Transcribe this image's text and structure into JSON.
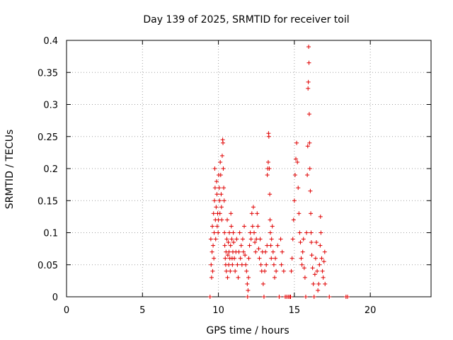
{
  "chart_data": {
    "type": "scatter",
    "title": "Day 139 of 2025, SRMTID for receiver toil",
    "xlabel": "GPS time / hours",
    "ylabel": "SRMTID / TECUs",
    "xlim": [
      0,
      24
    ],
    "ylim": [
      0,
      0.4
    ],
    "xticks": [
      0,
      5,
      10,
      15,
      20
    ],
    "xtick_labels": [
      "0",
      "5",
      "10",
      "15",
      "20"
    ],
    "yticks": [
      0,
      0.05,
      0.1,
      0.15,
      0.2,
      0.25,
      0.3,
      0.35,
      0.4
    ],
    "ytick_labels": [
      "0",
      "0.05",
      "0.1",
      "0.15",
      "0.2",
      "0.25",
      "0.3",
      "0.35",
      "0.4"
    ],
    "grid": true,
    "marker": "+",
    "color": "#e00000",
    "series": [
      {
        "name": "SRMTID",
        "points": [
          [
            9.45,
            0.0
          ],
          [
            9.5,
            0.09
          ],
          [
            9.52,
            0.05
          ],
          [
            9.55,
            0.03
          ],
          [
            9.58,
            0.07
          ],
          [
            9.6,
            0.11
          ],
          [
            9.62,
            0.04
          ],
          [
            9.65,
            0.08
          ],
          [
            9.68,
            0.13
          ],
          [
            9.7,
            0.06
          ],
          [
            9.72,
            0.1
          ],
          [
            9.74,
            0.15
          ],
          [
            9.76,
            0.2
          ],
          [
            9.78,
            0.17
          ],
          [
            9.8,
            0.12
          ],
          [
            9.82,
            0.09
          ],
          [
            9.85,
            0.14
          ],
          [
            9.88,
            0.18
          ],
          [
            9.9,
            0.16
          ],
          [
            9.92,
            0.11
          ],
          [
            9.95,
            0.13
          ],
          [
            9.98,
            0.1
          ],
          [
            10.0,
            0.12
          ],
          [
            10.02,
            0.19
          ],
          [
            10.05,
            0.17
          ],
          [
            10.08,
            0.15
          ],
          [
            10.1,
            0.13
          ],
          [
            10.12,
            0.21
          ],
          [
            10.15,
            0.19
          ],
          [
            10.18,
            0.16
          ],
          [
            10.2,
            0.14
          ],
          [
            10.22,
            0.12
          ],
          [
            10.25,
            0.22
          ],
          [
            10.28,
            0.245
          ],
          [
            10.3,
            0.24
          ],
          [
            10.32,
            0.2
          ],
          [
            10.35,
            0.17
          ],
          [
            10.38,
            0.15
          ],
          [
            10.4,
            0.1
          ],
          [
            10.42,
            0.08
          ],
          [
            10.45,
            0.06
          ],
          [
            10.48,
            0.05
          ],
          [
            10.5,
            0.07
          ],
          [
            10.52,
            0.04
          ],
          [
            10.55,
            0.09
          ],
          [
            10.58,
            0.12
          ],
          [
            10.6,
            0.03
          ],
          [
            10.62,
            0.065
          ],
          [
            10.65,
            0.085
          ],
          [
            10.68,
            0.05
          ],
          [
            10.7,
            0.07
          ],
          [
            10.72,
            0.1
          ],
          [
            10.75,
            0.06
          ],
          [
            10.78,
            0.04
          ],
          [
            10.8,
            0.08
          ],
          [
            10.82,
            0.13
          ],
          [
            10.85,
            0.11
          ],
          [
            10.88,
            0.09
          ],
          [
            10.9,
            0.06
          ],
          [
            10.92,
            0.05
          ],
          [
            10.95,
            0.07
          ],
          [
            10.98,
            0.1
          ],
          [
            11.0,
            0.085
          ],
          [
            11.05,
            0.06
          ],
          [
            11.1,
            0.04
          ],
          [
            11.15,
            0.07
          ],
          [
            11.2,
            0.09
          ],
          [
            11.25,
            0.05
          ],
          [
            11.3,
            0.03
          ],
          [
            11.35,
            0.07
          ],
          [
            11.4,
            0.1
          ],
          [
            11.45,
            0.06
          ],
          [
            11.5,
            0.08
          ],
          [
            11.55,
            0.05
          ],
          [
            11.6,
            0.09
          ],
          [
            11.65,
            0.07
          ],
          [
            11.7,
            0.11
          ],
          [
            11.75,
            0.065
          ],
          [
            11.8,
            0.05
          ],
          [
            11.85,
            0.04
          ],
          [
            11.9,
            0.02
          ],
          [
            11.92,
            0.0
          ],
          [
            11.95,
            0.01
          ],
          [
            11.98,
            0.03
          ],
          [
            12.0,
            0.06
          ],
          [
            12.05,
            0.08
          ],
          [
            12.1,
            0.1
          ],
          [
            12.15,
            0.09
          ],
          [
            12.2,
            0.13
          ],
          [
            12.25,
            0.11
          ],
          [
            12.3,
            0.14
          ],
          [
            12.35,
            0.1
          ],
          [
            12.4,
            0.085
          ],
          [
            12.45,
            0.07
          ],
          [
            12.5,
            0.09
          ],
          [
            12.55,
            0.13
          ],
          [
            12.6,
            0.11
          ],
          [
            12.65,
            0.075
          ],
          [
            12.7,
            0.06
          ],
          [
            12.75,
            0.09
          ],
          [
            12.8,
            0.05
          ],
          [
            12.85,
            0.04
          ],
          [
            12.9,
            0.07
          ],
          [
            12.95,
            0.02
          ],
          [
            13.0,
            0.0
          ],
          [
            13.05,
            0.04
          ],
          [
            13.1,
            0.07
          ],
          [
            13.15,
            0.05
          ],
          [
            13.2,
            0.08
          ],
          [
            13.22,
            0.19
          ],
          [
            13.25,
            0.2
          ],
          [
            13.28,
            0.21
          ],
          [
            13.3,
            0.255
          ],
          [
            13.32,
            0.25
          ],
          [
            13.35,
            0.2
          ],
          [
            13.38,
            0.16
          ],
          [
            13.4,
            0.12
          ],
          [
            13.42,
            0.1
          ],
          [
            13.45,
            0.08
          ],
          [
            13.48,
            0.06
          ],
          [
            13.5,
            0.09
          ],
          [
            13.55,
            0.11
          ],
          [
            13.6,
            0.07
          ],
          [
            13.65,
            0.05
          ],
          [
            13.7,
            0.03
          ],
          [
            13.75,
            0.06
          ],
          [
            13.8,
            0.04
          ],
          [
            13.9,
            0.08
          ],
          [
            14.0,
            0.0
          ],
          [
            14.1,
            0.09
          ],
          [
            14.15,
            0.05
          ],
          [
            14.2,
            0.07
          ],
          [
            14.3,
            0.04
          ],
          [
            14.4,
            0.0
          ],
          [
            14.5,
            0.0
          ],
          [
            14.6,
            0.0
          ],
          [
            14.7,
            0.0
          ],
          [
            14.75,
            0.0
          ],
          [
            14.8,
            0.04
          ],
          [
            14.85,
            0.06
          ],
          [
            14.9,
            0.09
          ],
          [
            14.95,
            0.12
          ],
          [
            15.0,
            0.15
          ],
          [
            15.05,
            0.19
          ],
          [
            15.1,
            0.215
          ],
          [
            15.15,
            0.24
          ],
          [
            15.2,
            0.21
          ],
          [
            15.25,
            0.17
          ],
          [
            15.3,
            0.13
          ],
          [
            15.35,
            0.1
          ],
          [
            15.4,
            0.085
          ],
          [
            15.45,
            0.06
          ],
          [
            15.5,
            0.05
          ],
          [
            15.55,
            0.07
          ],
          [
            15.6,
            0.09
          ],
          [
            15.65,
            0.045
          ],
          [
            15.7,
            0.03
          ],
          [
            15.75,
            0.0
          ],
          [
            15.8,
            0.1
          ],
          [
            15.85,
            0.19
          ],
          [
            15.88,
            0.235
          ],
          [
            15.9,
            0.325
          ],
          [
            15.92,
            0.335
          ],
          [
            15.94,
            0.39
          ],
          [
            15.96,
            0.365
          ],
          [
            15.98,
            0.285
          ],
          [
            16.0,
            0.24
          ],
          [
            16.02,
            0.2
          ],
          [
            16.05,
            0.165
          ],
          [
            16.08,
            0.13
          ],
          [
            16.1,
            0.1
          ],
          [
            16.12,
            0.085
          ],
          [
            16.15,
            0.065
          ],
          [
            16.2,
            0.045
          ],
          [
            16.25,
            0.02
          ],
          [
            16.3,
            0.0
          ],
          [
            16.35,
            0.035
          ],
          [
            16.4,
            0.06
          ],
          [
            16.45,
            0.085
          ],
          [
            16.5,
            0.04
          ],
          [
            16.55,
            0.01
          ],
          [
            16.6,
            0.02
          ],
          [
            16.65,
            0.05
          ],
          [
            16.7,
            0.08
          ],
          [
            16.72,
            0.125
          ],
          [
            16.75,
            0.1
          ],
          [
            16.8,
            0.06
          ],
          [
            16.85,
            0.04
          ],
          [
            16.9,
            0.03
          ],
          [
            16.95,
            0.055
          ],
          [
            17.0,
            0.07
          ],
          [
            17.02,
            0.02
          ],
          [
            17.3,
            0.0
          ],
          [
            18.4,
            0.0
          ],
          [
            18.5,
            0.0
          ]
        ]
      }
    ]
  }
}
